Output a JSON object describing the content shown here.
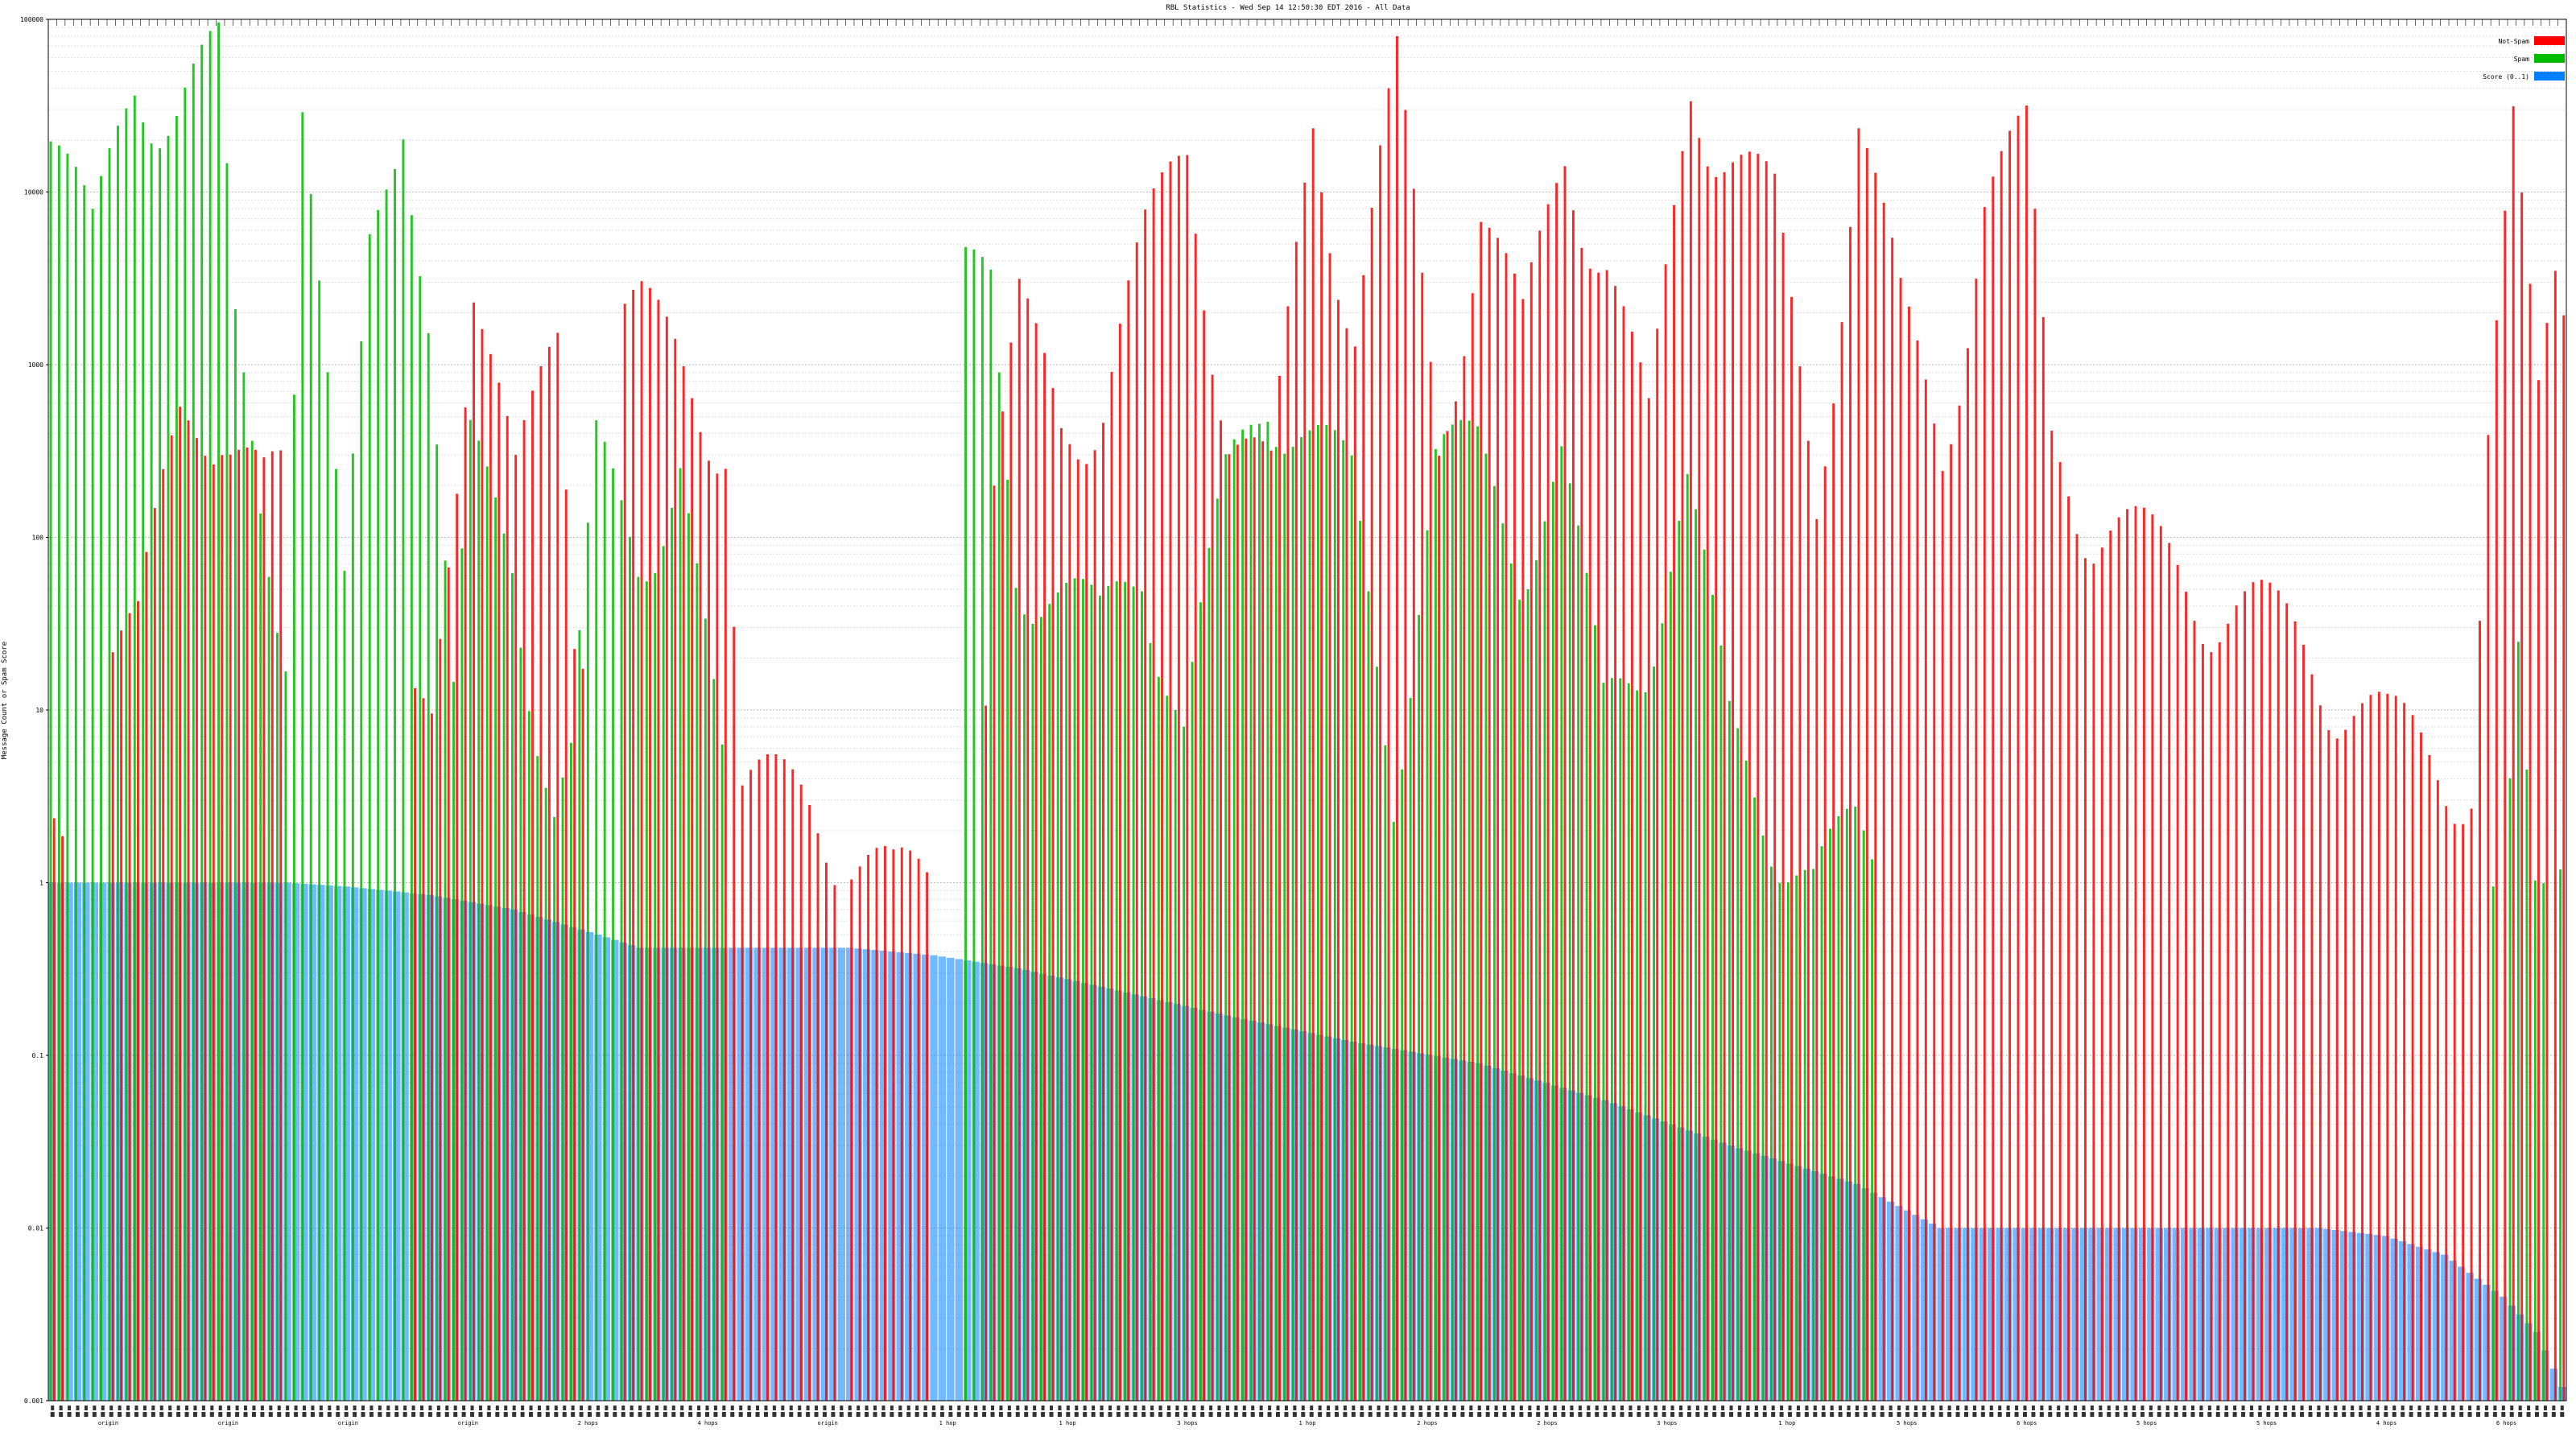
{
  "chart_data": {
    "type": "bar",
    "title": "RBL Statistics - Wed Sep 14 12:50:30 EDT 2016 - All Data",
    "ylabel": "Message Count or Spam Score",
    "xlabel": "",
    "yscale": "log",
    "ylim": [
      0.001,
      100000
    ],
    "yticks": [
      "0.001",
      "0.01",
      "0.1",
      "1",
      "10",
      "100",
      "1000",
      "10000",
      "100000"
    ],
    "grid": true,
    "legend": {
      "position": "top-right",
      "entries": [
        {
          "name": "Not-Spam",
          "color": "#ff0000"
        },
        {
          "name": "Spam",
          "color": "#00bb00"
        },
        {
          "name": "Score (0..1)",
          "color": "#0080ff"
        }
      ]
    },
    "categories_count": 300,
    "x_group_labels": [
      "origin",
      "origin",
      "origin",
      "origin",
      "2 hops",
      "4 hops",
      "origin",
      "1 hop",
      "1 hop",
      "3 hops",
      "1 hop",
      "2 hops",
      "2 hops",
      "3 hops",
      "1 hop",
      "5 hops",
      "6 hops",
      "5 hops",
      "5 hops",
      "4 hops",
      "6 hops"
    ],
    "series_colors": {
      "not_spam": "#ff0000",
      "spam": "#00bb00",
      "score": "#0080ff"
    },
    "not_spam_anchors": [
      [
        0,
        2
      ],
      [
        3,
        0
      ],
      [
        10,
        30
      ],
      [
        15,
        500
      ],
      [
        20,
        700
      ],
      [
        25,
        200
      ],
      [
        30,
        0
      ],
      [
        40,
        0
      ],
      [
        45,
        9
      ],
      [
        50,
        5000
      ],
      [
        55,
        200
      ],
      [
        60,
        1500
      ],
      [
        62,
        40
      ],
      [
        65,
        0
      ],
      [
        70,
        2000
      ],
      [
        75,
        1000
      ],
      [
        80,
        500
      ],
      [
        82,
        4
      ],
      [
        90,
        3
      ],
      [
        95,
        2
      ],
      [
        100,
        1
      ],
      [
        105,
        1
      ],
      [
        110,
        1
      ],
      [
        112,
        200
      ],
      [
        115,
        2000
      ],
      [
        120,
        500
      ],
      [
        125,
        800
      ],
      [
        130,
        5000
      ],
      [
        135,
        20000
      ],
      [
        140,
        500
      ],
      [
        145,
        200
      ],
      [
        150,
        30000
      ],
      [
        155,
        2000
      ],
      [
        160,
        50000
      ],
      [
        165,
        400
      ],
      [
        170,
        10000
      ],
      [
        175,
        1500
      ],
      [
        180,
        20000
      ],
      [
        185,
        5000
      ],
      [
        190,
        400
      ],
      [
        195,
        50000
      ],
      [
        200,
        20000
      ],
      [
        205,
        8000
      ],
      [
        210,
        200
      ],
      [
        215,
        30000
      ],
      [
        220,
        2000
      ],
      [
        225,
        400
      ],
      [
        230,
        10000
      ],
      [
        235,
        20000
      ],
      [
        238,
        400
      ],
      [
        240,
        300
      ],
      [
        243,
        150
      ],
      [
        248,
        100
      ],
      [
        255,
        60
      ],
      [
        262,
        40
      ],
      [
        268,
        25
      ],
      [
        273,
        15
      ],
      [
        278,
        8
      ],
      [
        283,
        6
      ],
      [
        288,
        5
      ],
      [
        290,
        400
      ],
      [
        293,
        20000
      ],
      [
        296,
        600
      ],
      [
        298,
        4000
      ],
      [
        299,
        3000
      ]
    ],
    "spam_anchors": [
      [
        0,
        30000
      ],
      [
        5,
        5000
      ],
      [
        10,
        50000
      ],
      [
        15,
        40000
      ],
      [
        20,
        60000
      ],
      [
        22,
        1500
      ],
      [
        25,
        200
      ],
      [
        28,
        40
      ],
      [
        30,
        40000
      ],
      [
        35,
        40
      ],
      [
        38,
        5000
      ],
      [
        42,
        50000
      ],
      [
        45,
        2000
      ],
      [
        48,
        10
      ],
      [
        50,
        300
      ],
      [
        55,
        100
      ],
      [
        60,
        3
      ],
      [
        62,
        5
      ],
      [
        65,
        300
      ],
      [
        70,
        100
      ],
      [
        75,
        300
      ],
      [
        80,
        4
      ],
      [
        82,
        0
      ],
      [
        95,
        0
      ],
      [
        100,
        0
      ],
      [
        105,
        0
      ],
      [
        112,
        3000
      ],
      [
        115,
        100
      ],
      [
        120,
        50
      ],
      [
        125,
        30
      ],
      [
        130,
        100
      ],
      [
        135,
        8
      ],
      [
        140,
        200
      ],
      [
        145,
        1000
      ],
      [
        150,
        400
      ],
      [
        155,
        200
      ],
      [
        160,
        5
      ],
      [
        165,
        300
      ],
      [
        170,
        300
      ],
      [
        175,
        100
      ],
      [
        180,
        300
      ],
      [
        185,
        10
      ],
      [
        190,
        30
      ],
      [
        195,
        200
      ],
      [
        200,
        8
      ],
      [
        205,
        3
      ],
      [
        210,
        1
      ],
      [
        215,
        2
      ],
      [
        220,
        1
      ],
      [
        225,
        0
      ],
      [
        230,
        0
      ],
      [
        240,
        0
      ],
      [
        290,
        0
      ],
      [
        292,
        1
      ],
      [
        294,
        60
      ],
      [
        296,
        2
      ],
      [
        298,
        1
      ],
      [
        299,
        1
      ]
    ],
    "score_anchors": [
      [
        0,
        1
      ],
      [
        28,
        1
      ],
      [
        35,
        0.95
      ],
      [
        45,
        0.85
      ],
      [
        55,
        0.7
      ],
      [
        65,
        0.5
      ],
      [
        70,
        0.42
      ],
      [
        80,
        0.42
      ],
      [
        92,
        0.42
      ],
      [
        95,
        0.42
      ],
      [
        105,
        0.38
      ],
      [
        115,
        0.32
      ],
      [
        125,
        0.25
      ],
      [
        140,
        0.17
      ],
      [
        155,
        0.12
      ],
      [
        170,
        0.09
      ],
      [
        185,
        0.055
      ],
      [
        200,
        0.03
      ],
      [
        215,
        0.018
      ],
      [
        225,
        0.01
      ],
      [
        270,
        0.01
      ],
      [
        278,
        0.009
      ],
      [
        285,
        0.007
      ],
      [
        292,
        0.004
      ],
      [
        296,
        0.0025
      ],
      [
        299,
        0.0012
      ]
    ]
  }
}
